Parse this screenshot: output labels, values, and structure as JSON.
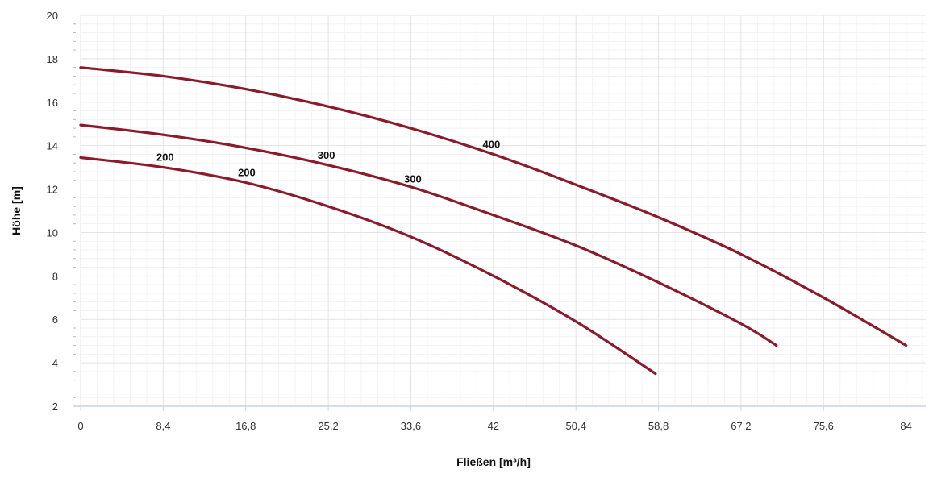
{
  "chart_data": {
    "type": "line",
    "xlabel": "Fließen [m³/h]",
    "ylabel": "Höhe [m]",
    "xlim": [
      0,
      86
    ],
    "ylim": [
      2,
      20
    ],
    "x_ticks": [
      0,
      8.4,
      16.8,
      25.2,
      33.6,
      42,
      50.4,
      58.8,
      67.2,
      75.6,
      84
    ],
    "x_tick_labels": [
      "0",
      "8,4",
      "16,8",
      "25,2",
      "33,6",
      "42",
      "50,4",
      "58,8",
      "67,2",
      "75,6",
      "84"
    ],
    "y_ticks": [
      2,
      4,
      6,
      8,
      10,
      12,
      14,
      16,
      18,
      20
    ],
    "y_tick_labels": [
      "2",
      "4",
      "6",
      "8",
      "10",
      "12",
      "14",
      "16",
      "18",
      "20"
    ],
    "grid": true,
    "colors": {
      "curve": "#8b1a2b",
      "grid_major": "#e3e3e3",
      "grid_minor": "#f3f3f3",
      "axis": "#c9d4e8"
    },
    "series": [
      {
        "name": "200",
        "x": [
          0,
          8.4,
          16.8,
          25.2,
          33.6,
          42,
          50.4,
          58.5
        ],
        "y": [
          13.45,
          13.0,
          12.3,
          11.2,
          9.8,
          8.0,
          5.9,
          3.5
        ]
      },
      {
        "name": "300",
        "x": [
          0,
          8.4,
          16.8,
          25.2,
          33.6,
          42,
          50.4,
          58.8,
          67.2,
          70.8
        ],
        "y": [
          14.95,
          14.5,
          13.9,
          13.1,
          12.1,
          10.8,
          9.4,
          7.7,
          5.8,
          4.8
        ]
      },
      {
        "name": "400",
        "x": [
          0,
          8.4,
          16.8,
          25.2,
          33.6,
          42,
          50.4,
          58.8,
          67.2,
          75.6,
          84
        ],
        "y": [
          17.6,
          17.2,
          16.6,
          15.8,
          14.8,
          13.6,
          12.2,
          10.7,
          9.0,
          7.0,
          4.8
        ]
      }
    ],
    "annotations": [
      {
        "text": "200",
        "x": 8.6,
        "y": 13.3
      },
      {
        "text": "200",
        "x": 16.9,
        "y": 12.6
      },
      {
        "text": "300",
        "x": 25.0,
        "y": 13.4
      },
      {
        "text": "300",
        "x": 33.8,
        "y": 12.3
      },
      {
        "text": "400",
        "x": 41.8,
        "y": 13.9
      }
    ]
  }
}
